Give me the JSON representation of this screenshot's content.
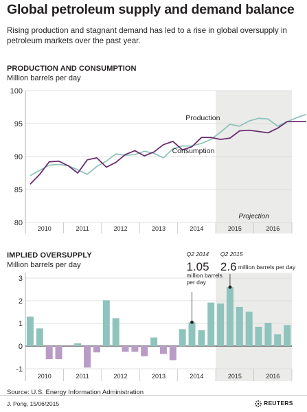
{
  "title": "Global petroleum supply and demand balance",
  "subtitle": "Rising production and stagnant demand has led to a rise in global oversupply in petroleum markets over the past year.",
  "source": "Source: U.S. Energy Information Administration",
  "byline": "J. Pong, 15/06/2015",
  "logo_text": "REUTERS",
  "colors": {
    "production": "#8fc4bd",
    "consumption": "#6a2c70",
    "bar": "#8fc4bd",
    "bar_negative": "#b99bc8",
    "projection_shade": "#ebebea",
    "grid": "#d8d8d8"
  },
  "chart_data": [
    {
      "type": "line",
      "title": "PRODUCTION AND CONSUMPTION",
      "ylabel": "Million barrels per day",
      "ylim": [
        80,
        100
      ],
      "yticks": [
        80,
        85,
        90,
        95,
        100
      ],
      "year_labels": [
        "2010",
        "2011",
        "2012",
        "2013",
        "2014",
        "2015",
        "2016"
      ],
      "x_start": 2010,
      "quarters_per_year": 4,
      "projection_start_index": 20,
      "projection_label": "Projection",
      "series": [
        {
          "name": "Production",
          "values": [
            87.1,
            87.9,
            88.7,
            88.8,
            88.6,
            88.0,
            87.3,
            88.5,
            89.3,
            90.4,
            90.2,
            90.3,
            90.8,
            90.5,
            89.8,
            91.2,
            91.6,
            91.6,
            92.0,
            92.6,
            93.7,
            94.9,
            94.6,
            95.4,
            95.8,
            95.7,
            94.6,
            95.3,
            95.9,
            96.4
          ]
        },
        {
          "name": "Consumption",
          "values": [
            85.8,
            87.3,
            89.2,
            89.3,
            88.6,
            87.5,
            89.5,
            89.8,
            88.4,
            89.1,
            90.3,
            90.9,
            90.1,
            90.7,
            91.8,
            92.3,
            91.0,
            91.5,
            92.9,
            92.9,
            92.6,
            92.8,
            93.9,
            94.0,
            93.8,
            93.6,
            94.3,
            95.3,
            95.3,
            95.3
          ]
        }
      ]
    },
    {
      "type": "bar",
      "title": "IMPLIED OVERSUPPLY",
      "ylabel": "Million barrels per day",
      "ylim": [
        -1,
        3
      ],
      "yticks": [
        -1,
        0,
        1,
        2,
        3
      ],
      "year_labels": [
        "2010",
        "2011",
        "2012",
        "2013",
        "2014",
        "2015",
        "2016"
      ],
      "x_start": 2010,
      "quarters_per_year": 4,
      "projection_start_index": 20,
      "values": [
        1.3,
        0.78,
        -0.58,
        -0.58,
        0.0,
        0.12,
        -0.95,
        -0.28,
        2.02,
        1.23,
        -0.25,
        -0.25,
        -0.45,
        0.38,
        -0.35,
        -0.62,
        0.75,
        1.05,
        0.7,
        1.92,
        1.88,
        2.6,
        1.73,
        1.52,
        0.85,
        1.03,
        0.52,
        0.93
      ],
      "annotations": [
        {
          "period": "Q2 2014",
          "value_text": "1.05",
          "unit_text": "million barrels per day",
          "bar_index": 17
        },
        {
          "period": "Q2 2015",
          "value_text": "2.6",
          "unit_text": "million barrels per day",
          "bar_index": 21
        }
      ]
    }
  ]
}
